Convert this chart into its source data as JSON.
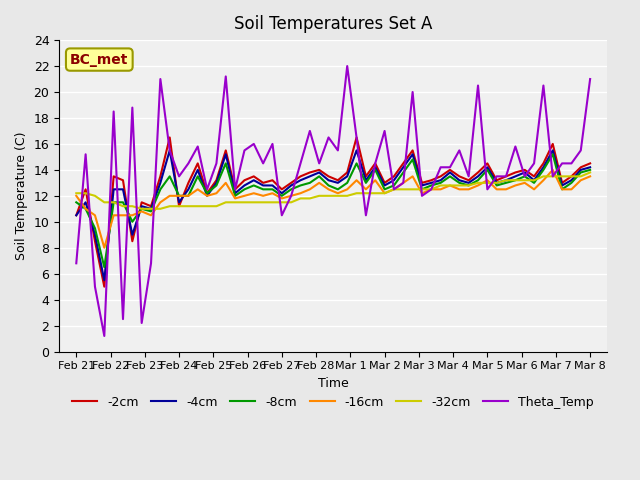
{
  "title": "Soil Temperatures Set A",
  "xlabel": "Time",
  "ylabel": "Soil Temperature (C)",
  "ylim": [
    0,
    24
  ],
  "annotation": "BC_met",
  "legend_labels": [
    "-2cm",
    "-4cm",
    "-8cm",
    "-16cm",
    "-32cm",
    "Theta_Temp"
  ],
  "colors": [
    "#cc0000",
    "#000099",
    "#009900",
    "#ff8800",
    "#cccc00",
    "#9900cc"
  ],
  "x_labels": [
    "Feb 21",
    "Feb 22",
    "Feb 23",
    "Feb 24",
    "Feb 25",
    "Feb 26",
    "Feb 27",
    "Feb 28",
    "Mar 1",
    "Mar 2",
    "Mar 3",
    "Mar 4",
    "Mar 5",
    "Mar 6",
    "Mar 7",
    "Mar 8"
  ],
  "series": {
    "cm2": [
      10.5,
      12.5,
      8.5,
      5.0,
      13.5,
      13.2,
      8.5,
      11.5,
      11.2,
      13.5,
      16.5,
      11.2,
      13.0,
      14.5,
      12.2,
      13.2,
      15.5,
      12.5,
      13.2,
      13.5,
      13.0,
      13.2,
      12.5,
      13.0,
      13.5,
      13.8,
      14.0,
      13.5,
      13.2,
      13.8,
      16.5,
      13.5,
      14.5,
      13.0,
      13.5,
      14.5,
      15.5,
      13.0,
      13.2,
      13.5,
      14.0,
      13.5,
      13.2,
      13.8,
      14.5,
      13.2,
      13.5,
      13.8,
      14.0,
      13.5,
      14.5,
      16.0,
      13.0,
      13.5,
      14.2,
      14.5
    ],
    "cm4": [
      10.5,
      11.5,
      9.0,
      5.5,
      12.5,
      12.5,
      9.0,
      11.2,
      11.0,
      13.0,
      15.5,
      11.5,
      12.5,
      14.0,
      12.0,
      13.0,
      15.2,
      12.2,
      12.8,
      13.2,
      12.8,
      12.8,
      12.2,
      12.8,
      13.2,
      13.5,
      13.8,
      13.2,
      13.0,
      13.5,
      15.5,
      13.2,
      14.2,
      12.8,
      13.2,
      14.2,
      15.2,
      12.8,
      13.0,
      13.2,
      13.8,
      13.2,
      13.0,
      13.5,
      14.2,
      13.0,
      13.2,
      13.5,
      13.8,
      13.2,
      14.2,
      15.5,
      12.8,
      13.2,
      14.0,
      14.2
    ],
    "cm8": [
      11.5,
      11.0,
      9.5,
      6.5,
      11.5,
      11.5,
      10.0,
      11.0,
      10.8,
      12.5,
      13.5,
      12.0,
      12.0,
      13.5,
      12.2,
      12.8,
      14.5,
      12.0,
      12.5,
      12.8,
      12.5,
      12.5,
      12.0,
      12.5,
      12.8,
      13.0,
      13.5,
      12.8,
      12.5,
      13.0,
      14.5,
      13.0,
      14.0,
      12.5,
      12.8,
      13.8,
      14.8,
      12.5,
      12.8,
      13.0,
      13.5,
      13.0,
      12.8,
      13.2,
      14.0,
      12.8,
      13.0,
      13.2,
      13.5,
      13.0,
      14.0,
      15.2,
      12.5,
      13.0,
      13.8,
      14.0
    ],
    "cm16": [
      12.0,
      11.0,
      10.5,
      8.0,
      10.5,
      10.5,
      10.5,
      10.8,
      10.5,
      11.5,
      12.0,
      12.0,
      12.0,
      12.5,
      12.0,
      12.2,
      13.0,
      11.8,
      12.0,
      12.2,
      12.0,
      12.2,
      11.8,
      12.0,
      12.2,
      12.5,
      13.0,
      12.5,
      12.2,
      12.5,
      13.2,
      12.5,
      13.2,
      12.2,
      12.5,
      13.0,
      13.5,
      12.2,
      12.5,
      12.5,
      12.8,
      12.5,
      12.5,
      12.8,
      13.2,
      12.5,
      12.5,
      12.8,
      13.0,
      12.5,
      13.2,
      14.0,
      12.5,
      12.5,
      13.2,
      13.5
    ],
    "cm32": [
      12.2,
      12.2,
      12.0,
      11.5,
      11.5,
      11.2,
      11.2,
      11.0,
      11.0,
      11.0,
      11.2,
      11.2,
      11.2,
      11.2,
      11.2,
      11.2,
      11.5,
      11.5,
      11.5,
      11.5,
      11.5,
      11.5,
      11.5,
      11.5,
      11.8,
      11.8,
      12.0,
      12.0,
      12.0,
      12.0,
      12.2,
      12.2,
      12.2,
      12.2,
      12.5,
      12.5,
      12.5,
      12.5,
      12.5,
      12.8,
      12.8,
      12.8,
      12.8,
      13.0,
      13.0,
      13.0,
      13.2,
      13.2,
      13.2,
      13.2,
      13.5,
      13.5,
      13.5,
      13.5,
      13.5,
      13.8
    ],
    "theta": [
      6.8,
      15.2,
      5.0,
      1.2,
      18.5,
      2.5,
      18.8,
      2.2,
      6.8,
      21.0,
      15.5,
      13.5,
      14.5,
      15.8,
      12.5,
      14.5,
      21.2,
      12.5,
      15.5,
      16.0,
      14.5,
      16.0,
      10.5,
      12.0,
      14.5,
      17.0,
      14.5,
      16.5,
      15.5,
      22.0,
      16.5,
      10.5,
      14.5,
      17.0,
      12.5,
      13.0,
      20.0,
      12.0,
      12.5,
      14.2,
      14.2,
      15.5,
      13.5,
      20.5,
      12.5,
      13.5,
      13.5,
      15.8,
      13.5,
      14.5,
      20.5,
      13.5,
      14.5,
      14.5,
      15.5,
      21.0
    ]
  },
  "background_color": "#e8e8e8",
  "plot_background": "#f0f0f0",
  "grid_color": "#ffffff",
  "line_width": 1.5
}
